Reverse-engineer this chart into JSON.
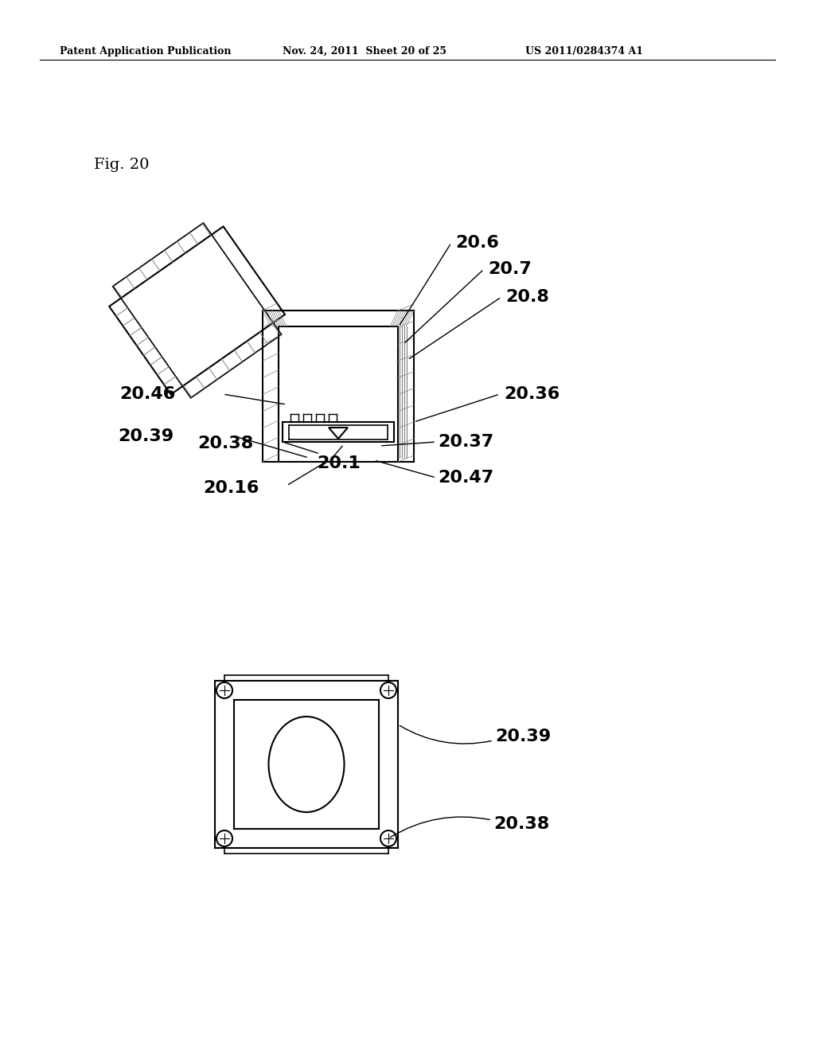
{
  "background_color": "#ffffff",
  "header_left": "Patent Application Publication",
  "header_mid": "Nov. 24, 2011  Sheet 20 of 25",
  "header_right": "US 2011/0284374 A1",
  "fig_label": "Fig. 20"
}
